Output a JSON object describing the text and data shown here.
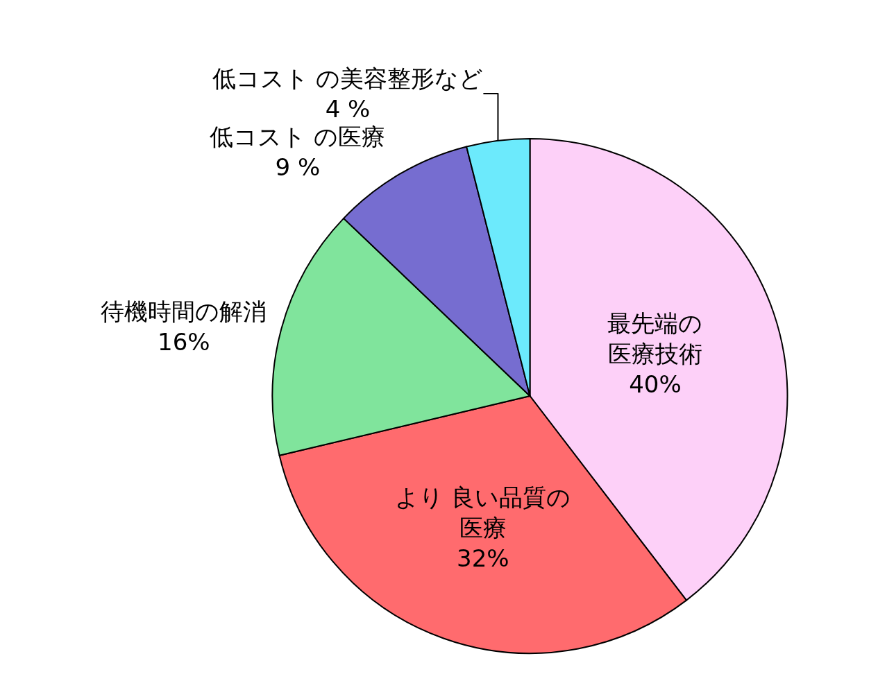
{
  "chart_data": {
    "type": "pie",
    "categories": [
      "最先端の医療技術",
      "より 良い品質の医療",
      "待機時間の解消",
      "低コスト の医療",
      "低コスト の美容整形など"
    ],
    "values": [
      40,
      32,
      16,
      9,
      4
    ],
    "colors": [
      "#fdd0f8",
      "#ff6b6e",
      "#80e49c",
      "#766dd0",
      "#6ceafc"
    ],
    "value_labels": [
      "40%",
      "32%",
      "16%",
      "9 %",
      "4 %"
    ],
    "legend": false
  }
}
